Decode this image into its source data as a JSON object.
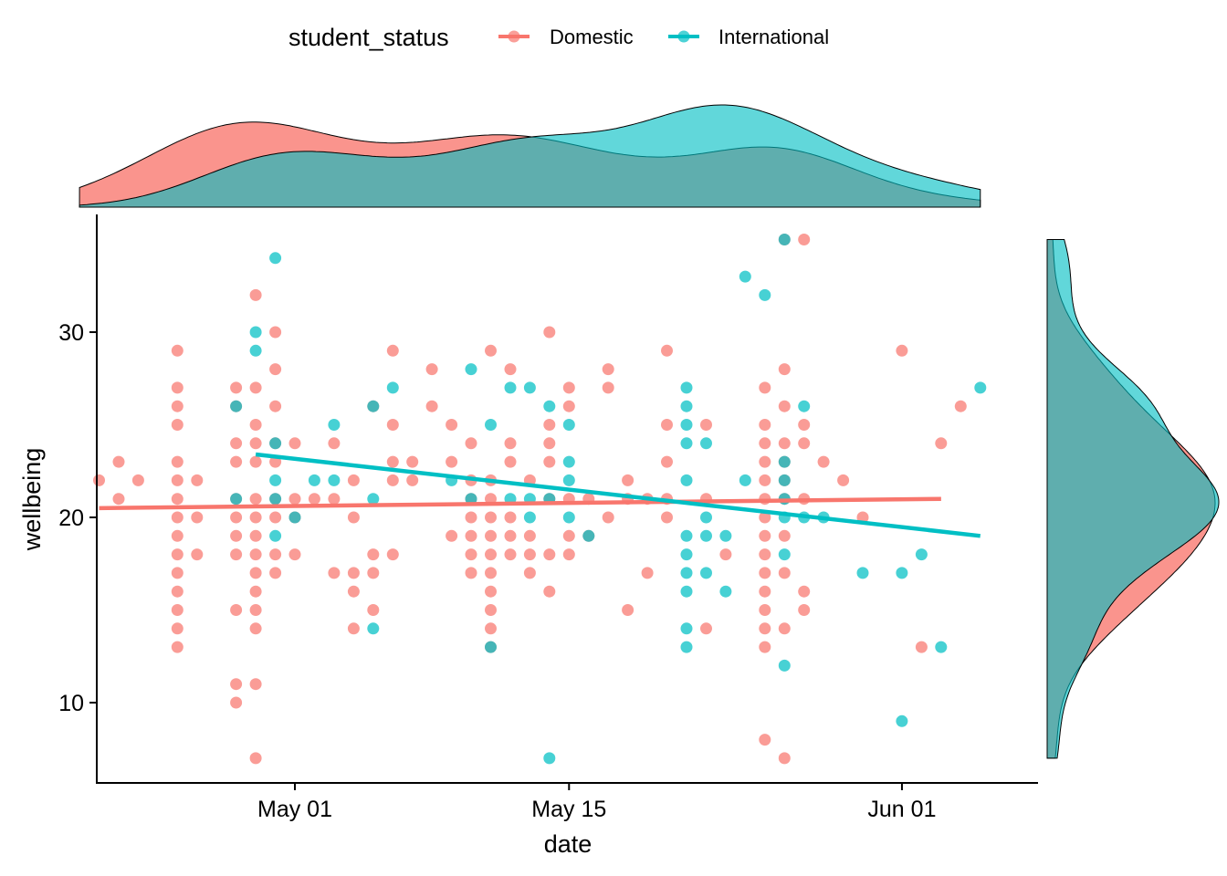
{
  "chart_data": {
    "type": "scatter",
    "x_axis": {
      "label": "date",
      "ticks": [
        "2020-05-01",
        "2020-05-15",
        "2020-06-01"
      ],
      "tick_labels": [
        "May 01",
        "May 15",
        "Jun 01"
      ],
      "range": [
        "2020-04-20",
        "2020-06-07"
      ]
    },
    "y_axis": {
      "label": "wellbeing",
      "ticks": [
        10,
        20,
        30
      ],
      "range": [
        6,
        36
      ]
    },
    "legend": {
      "title": "student_status",
      "position": "top",
      "items": [
        "Domestic",
        "International"
      ]
    },
    "series": [
      {
        "name": "Domestic",
        "color": "#F8766D",
        "trend": {
          "x": [
            "2020-04-21",
            "2020-06-03"
          ],
          "y": [
            20.5,
            21.0
          ]
        },
        "x_density_peaks_at": "2020-04-29",
        "points": [
          [
            "2020-04-21",
            22
          ],
          [
            "2020-04-22",
            23
          ],
          [
            "2020-04-22",
            21
          ],
          [
            "2020-04-23",
            22
          ],
          [
            "2020-04-25",
            29
          ],
          [
            "2020-04-25",
            27
          ],
          [
            "2020-04-25",
            26
          ],
          [
            "2020-04-25",
            25
          ],
          [
            "2020-04-25",
            23
          ],
          [
            "2020-04-25",
            22
          ],
          [
            "2020-04-25",
            21
          ],
          [
            "2020-04-25",
            20
          ],
          [
            "2020-04-25",
            19
          ],
          [
            "2020-04-25",
            18
          ],
          [
            "2020-04-25",
            17
          ],
          [
            "2020-04-25",
            16
          ],
          [
            "2020-04-25",
            15
          ],
          [
            "2020-04-25",
            14
          ],
          [
            "2020-04-25",
            13
          ],
          [
            "2020-04-26",
            22
          ],
          [
            "2020-04-26",
            20
          ],
          [
            "2020-04-26",
            18
          ],
          [
            "2020-04-28",
            27
          ],
          [
            "2020-04-28",
            26
          ],
          [
            "2020-04-28",
            24
          ],
          [
            "2020-04-28",
            23
          ],
          [
            "2020-04-28",
            21
          ],
          [
            "2020-04-28",
            20
          ],
          [
            "2020-04-28",
            19
          ],
          [
            "2020-04-28",
            18
          ],
          [
            "2020-04-28",
            15
          ],
          [
            "2020-04-28",
            11
          ],
          [
            "2020-04-28",
            10
          ],
          [
            "2020-04-29",
            32
          ],
          [
            "2020-04-29",
            27
          ],
          [
            "2020-04-29",
            25
          ],
          [
            "2020-04-29",
            24
          ],
          [
            "2020-04-29",
            23
          ],
          [
            "2020-04-29",
            21
          ],
          [
            "2020-04-29",
            20
          ],
          [
            "2020-04-29",
            19
          ],
          [
            "2020-04-29",
            18
          ],
          [
            "2020-04-29",
            17
          ],
          [
            "2020-04-29",
            16
          ],
          [
            "2020-04-29",
            15
          ],
          [
            "2020-04-29",
            14
          ],
          [
            "2020-04-29",
            11
          ],
          [
            "2020-04-29",
            7
          ],
          [
            "2020-04-30",
            30
          ],
          [
            "2020-04-30",
            28
          ],
          [
            "2020-04-30",
            26
          ],
          [
            "2020-04-30",
            24
          ],
          [
            "2020-04-30",
            23
          ],
          [
            "2020-04-30",
            21
          ],
          [
            "2020-04-30",
            20
          ],
          [
            "2020-04-30",
            18
          ],
          [
            "2020-04-30",
            17
          ],
          [
            "2020-05-01",
            24
          ],
          [
            "2020-05-01",
            21
          ],
          [
            "2020-05-01",
            20
          ],
          [
            "2020-05-01",
            18
          ],
          [
            "2020-05-02",
            21
          ],
          [
            "2020-05-03",
            21
          ],
          [
            "2020-05-03",
            17
          ],
          [
            "2020-05-03",
            24
          ],
          [
            "2020-05-04",
            22
          ],
          [
            "2020-05-04",
            20
          ],
          [
            "2020-05-04",
            17
          ],
          [
            "2020-05-04",
            16
          ],
          [
            "2020-05-04",
            14
          ],
          [
            "2020-05-05",
            26
          ],
          [
            "2020-05-05",
            18
          ],
          [
            "2020-05-05",
            17
          ],
          [
            "2020-05-05",
            15
          ],
          [
            "2020-05-06",
            29
          ],
          [
            "2020-05-06",
            25
          ],
          [
            "2020-05-06",
            23
          ],
          [
            "2020-05-06",
            22
          ],
          [
            "2020-05-06",
            18
          ],
          [
            "2020-05-07",
            23
          ],
          [
            "2020-05-07",
            22
          ],
          [
            "2020-05-08",
            28
          ],
          [
            "2020-05-08",
            26
          ],
          [
            "2020-05-09",
            25
          ],
          [
            "2020-05-09",
            23
          ],
          [
            "2020-05-09",
            19
          ],
          [
            "2020-05-10",
            24
          ],
          [
            "2020-05-10",
            22
          ],
          [
            "2020-05-10",
            21
          ],
          [
            "2020-05-10",
            20
          ],
          [
            "2020-05-10",
            19
          ],
          [
            "2020-05-10",
            18
          ],
          [
            "2020-05-10",
            17
          ],
          [
            "2020-05-11",
            29
          ],
          [
            "2020-05-11",
            22
          ],
          [
            "2020-05-11",
            21
          ],
          [
            "2020-05-11",
            20
          ],
          [
            "2020-05-11",
            19
          ],
          [
            "2020-05-11",
            18
          ],
          [
            "2020-05-11",
            17
          ],
          [
            "2020-05-11",
            16
          ],
          [
            "2020-05-11",
            15
          ],
          [
            "2020-05-11",
            14
          ],
          [
            "2020-05-11",
            13
          ],
          [
            "2020-05-12",
            28
          ],
          [
            "2020-05-12",
            24
          ],
          [
            "2020-05-12",
            23
          ],
          [
            "2020-05-12",
            20
          ],
          [
            "2020-05-12",
            19
          ],
          [
            "2020-05-12",
            18
          ],
          [
            "2020-05-13",
            22
          ],
          [
            "2020-05-13",
            19
          ],
          [
            "2020-05-13",
            18
          ],
          [
            "2020-05-13",
            17
          ],
          [
            "2020-05-14",
            30
          ],
          [
            "2020-05-14",
            25
          ],
          [
            "2020-05-14",
            24
          ],
          [
            "2020-05-14",
            23
          ],
          [
            "2020-05-14",
            21
          ],
          [
            "2020-05-14",
            18
          ],
          [
            "2020-05-14",
            16
          ],
          [
            "2020-05-15",
            27
          ],
          [
            "2020-05-15",
            26
          ],
          [
            "2020-05-15",
            21
          ],
          [
            "2020-05-15",
            19
          ],
          [
            "2020-05-15",
            18
          ],
          [
            "2020-05-16",
            21
          ],
          [
            "2020-05-16",
            19
          ],
          [
            "2020-05-17",
            28
          ],
          [
            "2020-05-17",
            27
          ],
          [
            "2020-05-17",
            20
          ],
          [
            "2020-05-18",
            22
          ],
          [
            "2020-05-18",
            21
          ],
          [
            "2020-05-18",
            15
          ],
          [
            "2020-05-19",
            21
          ],
          [
            "2020-05-19",
            17
          ],
          [
            "2020-05-20",
            29
          ],
          [
            "2020-05-20",
            25
          ],
          [
            "2020-05-20",
            23
          ],
          [
            "2020-05-20",
            21
          ],
          [
            "2020-05-20",
            20
          ],
          [
            "2020-05-22",
            25
          ],
          [
            "2020-05-22",
            21
          ],
          [
            "2020-05-22",
            14
          ],
          [
            "2020-05-23",
            18
          ],
          [
            "2020-05-25",
            27
          ],
          [
            "2020-05-25",
            25
          ],
          [
            "2020-05-25",
            24
          ],
          [
            "2020-05-25",
            23
          ],
          [
            "2020-05-25",
            22
          ],
          [
            "2020-05-25",
            21
          ],
          [
            "2020-05-25",
            20
          ],
          [
            "2020-05-25",
            19
          ],
          [
            "2020-05-25",
            18
          ],
          [
            "2020-05-25",
            17
          ],
          [
            "2020-05-25",
            16
          ],
          [
            "2020-05-25",
            15
          ],
          [
            "2020-05-25",
            14
          ],
          [
            "2020-05-25",
            13
          ],
          [
            "2020-05-25",
            8
          ],
          [
            "2020-05-26",
            35
          ],
          [
            "2020-05-26",
            28
          ],
          [
            "2020-05-26",
            26
          ],
          [
            "2020-05-26",
            24
          ],
          [
            "2020-05-26",
            23
          ],
          [
            "2020-05-26",
            22
          ],
          [
            "2020-05-26",
            21
          ],
          [
            "2020-05-26",
            19
          ],
          [
            "2020-05-26",
            17
          ],
          [
            "2020-05-26",
            14
          ],
          [
            "2020-05-26",
            7
          ],
          [
            "2020-05-27",
            35
          ],
          [
            "2020-05-27",
            25
          ],
          [
            "2020-05-27",
            24
          ],
          [
            "2020-05-27",
            21
          ],
          [
            "2020-05-27",
            16
          ],
          [
            "2020-05-27",
            15
          ],
          [
            "2020-05-28",
            23
          ],
          [
            "2020-05-29",
            22
          ],
          [
            "2020-05-30",
            20
          ],
          [
            "2020-06-01",
            29
          ],
          [
            "2020-06-02",
            13
          ],
          [
            "2020-06-03",
            24
          ],
          [
            "2020-06-04",
            26
          ]
        ]
      },
      {
        "name": "International",
        "color": "#00BFC4",
        "trend": {
          "x": [
            "2020-04-29",
            "2020-06-05"
          ],
          "y": [
            23.4,
            19.0
          ]
        },
        "x_density_peaks_at": "2020-05-23",
        "points": [
          [
            "2020-04-28",
            26
          ],
          [
            "2020-04-28",
            21
          ],
          [
            "2020-04-29",
            30
          ],
          [
            "2020-04-29",
            29
          ],
          [
            "2020-04-30",
            34
          ],
          [
            "2020-04-30",
            24
          ],
          [
            "2020-04-30",
            22
          ],
          [
            "2020-04-30",
            21
          ],
          [
            "2020-04-30",
            19
          ],
          [
            "2020-05-01",
            20
          ],
          [
            "2020-05-02",
            22
          ],
          [
            "2020-05-03",
            22
          ],
          [
            "2020-05-03",
            25
          ],
          [
            "2020-05-05",
            26
          ],
          [
            "2020-05-05",
            21
          ],
          [
            "2020-05-05",
            14
          ],
          [
            "2020-05-06",
            27
          ],
          [
            "2020-05-09",
            22
          ],
          [
            "2020-05-10",
            28
          ],
          [
            "2020-05-10",
            21
          ],
          [
            "2020-05-11",
            25
          ],
          [
            "2020-05-11",
            13
          ],
          [
            "2020-05-12",
            27
          ],
          [
            "2020-05-12",
            21
          ],
          [
            "2020-05-13",
            27
          ],
          [
            "2020-05-13",
            21
          ],
          [
            "2020-05-13",
            20
          ],
          [
            "2020-05-14",
            26
          ],
          [
            "2020-05-14",
            21
          ],
          [
            "2020-05-14",
            7
          ],
          [
            "2020-05-15",
            25
          ],
          [
            "2020-05-15",
            23
          ],
          [
            "2020-05-15",
            22
          ],
          [
            "2020-05-15",
            20
          ],
          [
            "2020-05-16",
            19
          ],
          [
            "2020-05-21",
            27
          ],
          [
            "2020-05-21",
            26
          ],
          [
            "2020-05-21",
            25
          ],
          [
            "2020-05-21",
            24
          ],
          [
            "2020-05-21",
            22
          ],
          [
            "2020-05-21",
            19
          ],
          [
            "2020-05-21",
            18
          ],
          [
            "2020-05-21",
            17
          ],
          [
            "2020-05-21",
            16
          ],
          [
            "2020-05-21",
            14
          ],
          [
            "2020-05-21",
            13
          ],
          [
            "2020-05-22",
            24
          ],
          [
            "2020-05-22",
            20
          ],
          [
            "2020-05-22",
            19
          ],
          [
            "2020-05-22",
            17
          ],
          [
            "2020-05-23",
            19
          ],
          [
            "2020-05-23",
            16
          ],
          [
            "2020-05-24",
            33
          ],
          [
            "2020-05-24",
            22
          ],
          [
            "2020-05-25",
            32
          ],
          [
            "2020-05-26",
            35
          ],
          [
            "2020-05-26",
            23
          ],
          [
            "2020-05-26",
            22
          ],
          [
            "2020-05-26",
            21
          ],
          [
            "2020-05-26",
            20
          ],
          [
            "2020-05-26",
            18
          ],
          [
            "2020-05-26",
            12
          ],
          [
            "2020-05-27",
            26
          ],
          [
            "2020-05-27",
            20
          ],
          [
            "2020-05-28",
            20
          ],
          [
            "2020-05-30",
            17
          ],
          [
            "2020-06-01",
            17
          ],
          [
            "2020-06-01",
            9
          ],
          [
            "2020-06-02",
            18
          ],
          [
            "2020-06-03",
            13
          ],
          [
            "2020-06-05",
            27
          ]
        ]
      }
    ]
  }
}
